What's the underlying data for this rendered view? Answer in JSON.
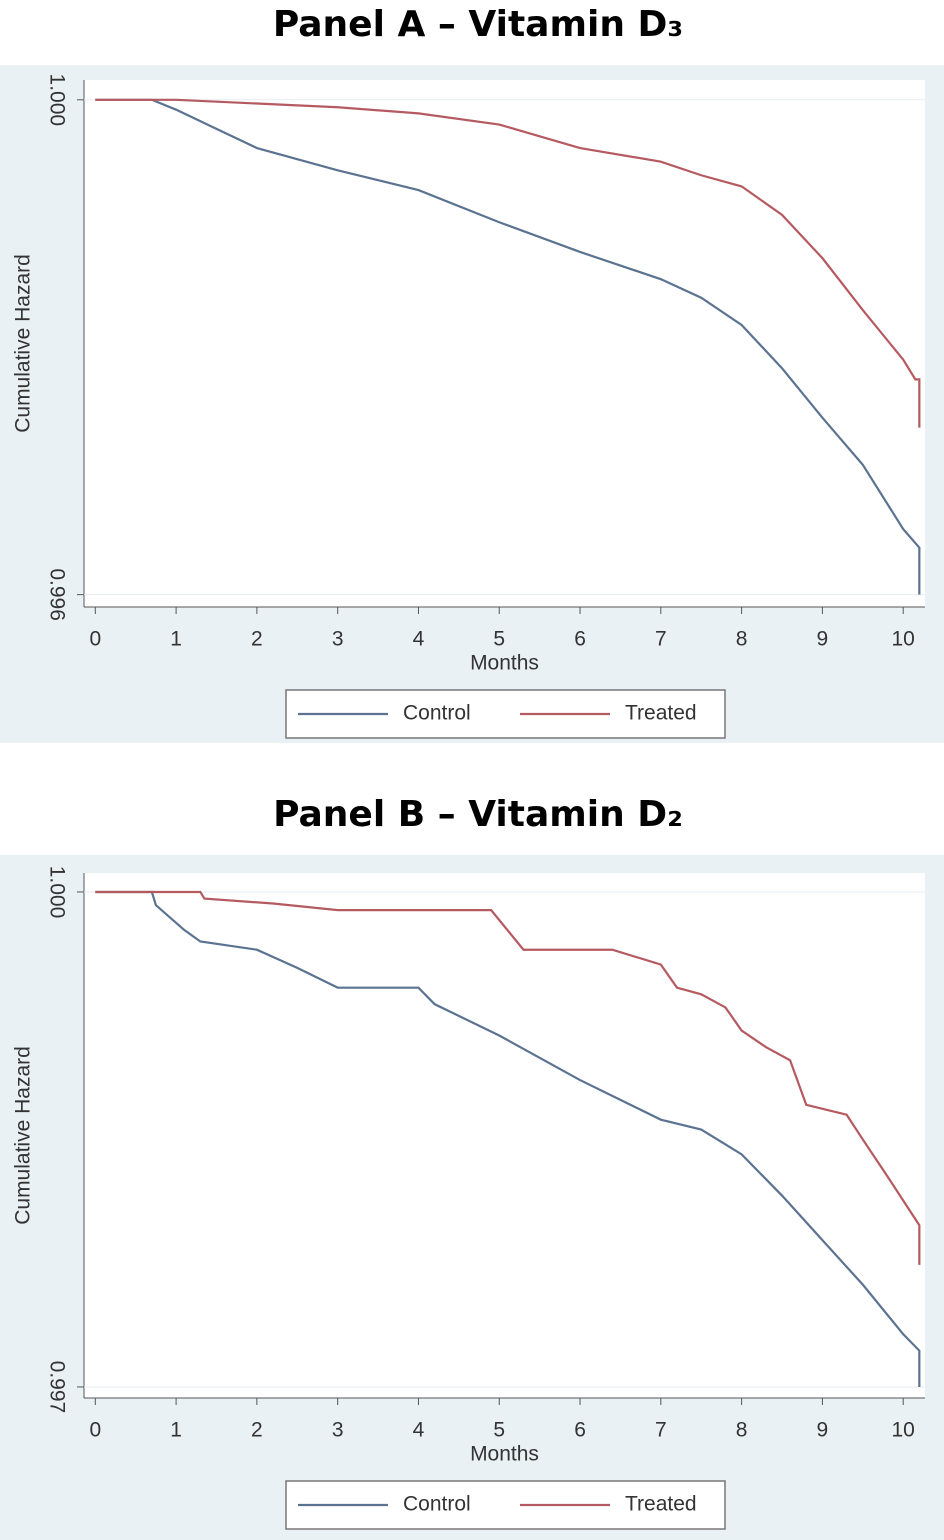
{
  "chart_data": [
    {
      "type": "line",
      "title": "Panel A – Vitamin D₃",
      "xlabel": "Months",
      "ylabel": "Cumulative Hazard",
      "xlim": [
        -0.14,
        10.27
      ],
      "ylim": [
        0.9959,
        1.00016
      ],
      "xticks": [
        0,
        1,
        2,
        3,
        4,
        5,
        6,
        7,
        8,
        9,
        10
      ],
      "yticks": [
        {
          "value": 0.996,
          "label": "0.996"
        },
        {
          "value": 1,
          "label": "1.000"
        }
      ],
      "series": [
        {
          "name": "Control",
          "color": "#5b7391",
          "x": [
            0,
            0.7,
            1,
            2,
            3,
            4,
            5,
            6,
            7,
            7.5,
            8,
            8.5,
            9,
            9.5,
            10,
            10.2,
            10.2
          ],
          "values": [
            1,
            1,
            0.99992,
            0.99961,
            0.99943,
            0.99927,
            0.99901,
            0.99877,
            0.99855,
            0.9984,
            0.99818,
            0.99783,
            0.99743,
            0.99705,
            0.99653,
            0.99638,
            0.996
          ]
        },
        {
          "name": "Treated",
          "color": "#b55a60",
          "x": [
            0,
            1,
            2,
            3,
            4,
            5,
            6,
            7,
            7.5,
            8,
            8.5,
            9,
            9.5,
            10,
            10.15,
            10.2,
            10.2
          ],
          "values": [
            1,
            1,
            0.99997,
            0.99994,
            0.99989,
            0.9998,
            0.99961,
            0.9995,
            0.99939,
            0.9993,
            0.99907,
            0.99872,
            0.9983,
            0.9979,
            0.99774,
            0.99774,
            0.99735
          ]
        }
      ]
    },
    {
      "type": "line",
      "title": "Panel B – Vitamin D₂",
      "xlabel": "Months",
      "ylabel": "Cumulative Hazard",
      "xlim": [
        -0.14,
        10.27
      ],
      "ylim": [
        0.996933,
        1.000115
      ],
      "xticks": [
        0,
        1,
        2,
        3,
        4,
        5,
        6,
        7,
        8,
        9,
        10
      ],
      "yticks": [
        {
          "value": 0.997,
          "label": "0.997"
        },
        {
          "value": 1,
          "label": "1.000"
        }
      ],
      "series": [
        {
          "name": "Control",
          "color": "#5b7391",
          "x": [
            0,
            0.7,
            0.75,
            1.1,
            1.3,
            2,
            2.5,
            3,
            4,
            4.2,
            5,
            6,
            7,
            7.5,
            8,
            8.5,
            9,
            9.5,
            10,
            10.2,
            10.2
          ],
          "values": [
            1,
            1,
            0.99992,
            0.99977,
            0.9997,
            0.99965,
            0.99954,
            0.99942,
            0.99942,
            0.99932,
            0.99913,
            0.99886,
            0.99862,
            0.99856,
            0.99841,
            0.99816,
            0.99789,
            0.99762,
            0.99732,
            0.99722,
            0.997
          ]
        },
        {
          "name": "Treated",
          "color": "#b55a60",
          "x": [
            0,
            1.3,
            1.35,
            2.2,
            3,
            4.9,
            5.3,
            6.4,
            7,
            7.2,
            7.5,
            7.8,
            8,
            8.3,
            8.6,
            8.8,
            9.3,
            9.5,
            9.8,
            10,
            10.2,
            10.2
          ],
          "values": [
            1,
            1,
            0.99996,
            0.99993,
            0.99989,
            0.99989,
            0.99965,
            0.99965,
            0.99956,
            0.99942,
            0.99938,
            0.9993,
            0.99916,
            0.99906,
            0.99898,
            0.99871,
            0.99865,
            0.9985,
            0.99828,
            0.99813,
            0.99798,
            0.99774
          ]
        }
      ]
    }
  ]
}
